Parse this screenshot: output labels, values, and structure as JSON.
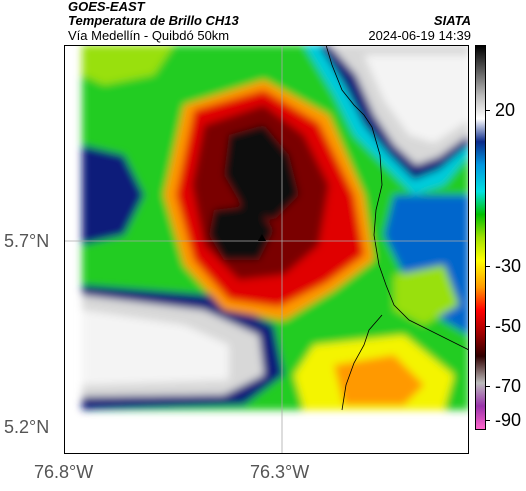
{
  "header": {
    "satellite": "GOES-EAST",
    "product": "Temperatura de Brillo CH13",
    "region": "Vía Medellín - Quibdó 50km",
    "agency": "SIATA",
    "timestamp": "2024-06-19 14:39"
  },
  "axes": {
    "lat_labels": [
      "5.7°N",
      "5.2°N"
    ],
    "lon_labels": [
      "76.8°W",
      "76.3°W"
    ]
  },
  "colorbar": {
    "ticks": [
      "20",
      "-30",
      "-50",
      "-70",
      "-90"
    ],
    "colors": [
      "#000000",
      "#555555",
      "#bbbbbb",
      "#ffffff",
      "#0a2a8a",
      "#0096e0",
      "#00e0e0",
      "#00c000",
      "#a0e000",
      "#ffff00",
      "#ff9900",
      "#ff0000",
      "#a00000",
      "#300000",
      "#bbbbbb",
      "#9933aa",
      "#ff66cc"
    ]
  },
  "map": {
    "marker_icon": "location-marker-icon",
    "colors": {
      "cold_core": "#111111",
      "deep_red": "#7a0000",
      "red": "#e00000",
      "orange": "#ff9900",
      "yellow": "#f4f400",
      "green": "#22cc22",
      "lime": "#99e010",
      "cyan": "#00ccdd",
      "blue": "#0066cc",
      "navy": "#0a1f7a",
      "clear_light": "#d8d8d8",
      "clear_white": "#f4f4f4"
    }
  }
}
